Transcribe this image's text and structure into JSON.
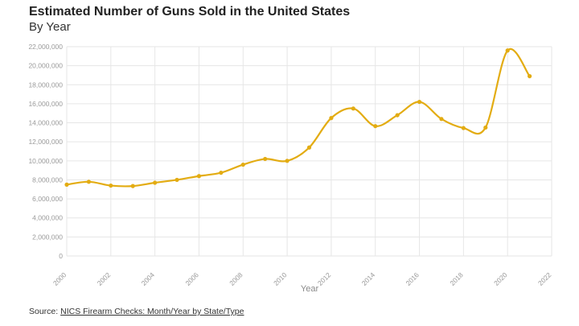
{
  "header": {
    "title": "Estimated Number of Guns Sold in the United States",
    "subtitle": "By Year"
  },
  "footer": {
    "source_prefix": "Source: ",
    "source_link": "NICS Firearm Checks: Month/Year by State/Type"
  },
  "colors": {
    "line": "#e3ac12",
    "grid": "#e6e6e6",
    "tick": "#9a9a9a"
  },
  "chart_data": {
    "type": "line",
    "title": "Estimated Number of Guns Sold in the United States",
    "subtitle": "By Year",
    "xlabel": "Year",
    "ylabel": "",
    "xlim": [
      2000,
      2022
    ],
    "ylim": [
      0,
      22000000
    ],
    "x_ticks": [
      2000,
      2002,
      2004,
      2006,
      2008,
      2010,
      2012,
      2014,
      2016,
      2018,
      2020,
      2022
    ],
    "y_ticks": [
      0,
      2000000,
      4000000,
      6000000,
      8000000,
      10000000,
      12000000,
      14000000,
      16000000,
      18000000,
      20000000,
      22000000
    ],
    "y_tick_labels": [
      "0",
      "2,000,000",
      "4,000,000",
      "6,000,000",
      "8,000,000",
      "10,000,000",
      "12,000,000",
      "14,000,000",
      "16,000,000",
      "18,000,000",
      "20,000,000",
      "22,000,000"
    ],
    "grid": true,
    "series": [
      {
        "x": [
          2000,
          2001,
          2002,
          2003,
          2004,
          2005,
          2006,
          2007,
          2008,
          2009,
          2010,
          2011,
          2012,
          2013,
          2014,
          2015,
          2016,
          2017,
          2018,
          2019,
          2020,
          2021
        ],
        "values": [
          7500000,
          7800000,
          7400000,
          7350000,
          7700000,
          8000000,
          8400000,
          8750000,
          9600000,
          10200000,
          10000000,
          11400000,
          14500000,
          15500000,
          13650000,
          14800000,
          16200000,
          14400000,
          13450000,
          13500000,
          21600000,
          18900000
        ]
      }
    ]
  }
}
